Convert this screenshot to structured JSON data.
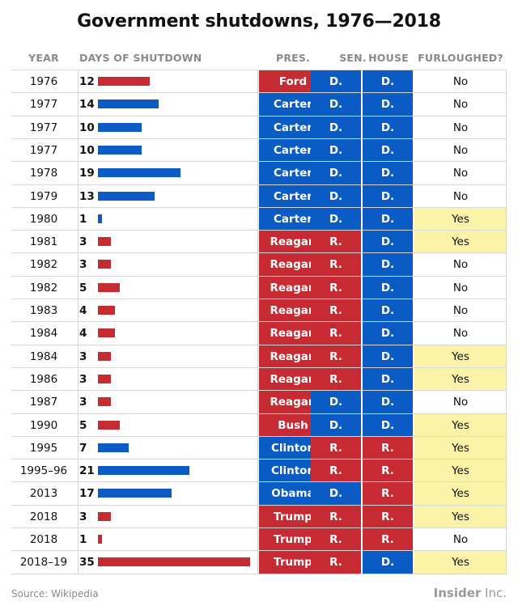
{
  "title": "Government shutdowns, 1976—2018",
  "headers": {
    "year": "YEAR",
    "days": "DAYS OF SHUTDOWN",
    "pres": "PRES.",
    "sen": "SEN.",
    "house": "HOUSE",
    "furloughed": "FURLOUGHED?"
  },
  "colors": {
    "D": "#0a5bc4",
    "R": "#c62a33",
    "furloughed_yes": "#fbf4a8",
    "rule": "#d6d6d6",
    "muted_text": "#8a8a8a"
  },
  "chart_data": {
    "type": "table",
    "bar_max": 35,
    "rows": [
      {
        "year": "1976",
        "days": 12,
        "pres": "Ford",
        "pres_party": "R",
        "sen": "D.",
        "house": "D.",
        "furloughed": "No"
      },
      {
        "year": "1977",
        "days": 14,
        "pres": "Carter",
        "pres_party": "D",
        "sen": "D.",
        "house": "D.",
        "furloughed": "No"
      },
      {
        "year": "1977",
        "days": 10,
        "pres": "Carter",
        "pres_party": "D",
        "sen": "D.",
        "house": "D.",
        "furloughed": "No"
      },
      {
        "year": "1977",
        "days": 10,
        "pres": "Carter",
        "pres_party": "D",
        "sen": "D.",
        "house": "D.",
        "furloughed": "No"
      },
      {
        "year": "1978",
        "days": 19,
        "pres": "Carter",
        "pres_party": "D",
        "sen": "D.",
        "house": "D.",
        "furloughed": "No"
      },
      {
        "year": "1979",
        "days": 13,
        "pres": "Carter",
        "pres_party": "D",
        "sen": "D.",
        "house": "D.",
        "furloughed": "No"
      },
      {
        "year": "1980",
        "days": 1,
        "pres": "Carter",
        "pres_party": "D",
        "sen": "D.",
        "house": "D.",
        "furloughed": "Yes"
      },
      {
        "year": "1981",
        "days": 3,
        "pres": "Reagan",
        "pres_party": "R",
        "sen": "R.",
        "house": "D.",
        "furloughed": "Yes"
      },
      {
        "year": "1982",
        "days": 3,
        "pres": "Reagan",
        "pres_party": "R",
        "sen": "R.",
        "house": "D.",
        "furloughed": "No"
      },
      {
        "year": "1982",
        "days": 5,
        "pres": "Reagan",
        "pres_party": "R",
        "sen": "R.",
        "house": "D.",
        "furloughed": "No"
      },
      {
        "year": "1983",
        "days": 4,
        "pres": "Reagan",
        "pres_party": "R",
        "sen": "R.",
        "house": "D.",
        "furloughed": "No"
      },
      {
        "year": "1984",
        "days": 4,
        "pres": "Reagan",
        "pres_party": "R",
        "sen": "R.",
        "house": "D.",
        "furloughed": "No"
      },
      {
        "year": "1984",
        "days": 3,
        "pres": "Reagan",
        "pres_party": "R",
        "sen": "R.",
        "house": "D.",
        "furloughed": "Yes"
      },
      {
        "year": "1986",
        "days": 3,
        "pres": "Reagan",
        "pres_party": "R",
        "sen": "R.",
        "house": "D.",
        "furloughed": "Yes"
      },
      {
        "year": "1987",
        "days": 3,
        "pres": "Reagan",
        "pres_party": "R",
        "sen": "D.",
        "house": "D.",
        "furloughed": "No"
      },
      {
        "year": "1990",
        "days": 5,
        "pres": "Bush",
        "pres_party": "R",
        "sen": "D.",
        "house": "D.",
        "furloughed": "Yes"
      },
      {
        "year": "1995",
        "days": 7,
        "pres": "Clinton",
        "pres_party": "D",
        "sen": "R.",
        "house": "R.",
        "furloughed": "Yes"
      },
      {
        "year": "1995–96",
        "days": 21,
        "pres": "Clinton",
        "pres_party": "D",
        "sen": "R.",
        "house": "R.",
        "furloughed": "Yes"
      },
      {
        "year": "2013",
        "days": 17,
        "pres": "Obama",
        "pres_party": "D",
        "sen": "D.",
        "house": "R.",
        "furloughed": "Yes"
      },
      {
        "year": "2018",
        "days": 3,
        "pres": "Trump",
        "pres_party": "R",
        "sen": "R.",
        "house": "R.",
        "furloughed": "Yes"
      },
      {
        "year": "2018",
        "days": 1,
        "pres": "Trump",
        "pres_party": "R",
        "sen": "R.",
        "house": "R.",
        "furloughed": "No"
      },
      {
        "year": "2018–19",
        "days": 35,
        "pres": "Trump",
        "pres_party": "R",
        "sen": "R.",
        "house": "D.",
        "furloughed": "Yes"
      }
    ]
  },
  "footer": {
    "source": "Source: Wikipedia",
    "brand_bold": "Insider",
    "brand_light": " Inc."
  }
}
